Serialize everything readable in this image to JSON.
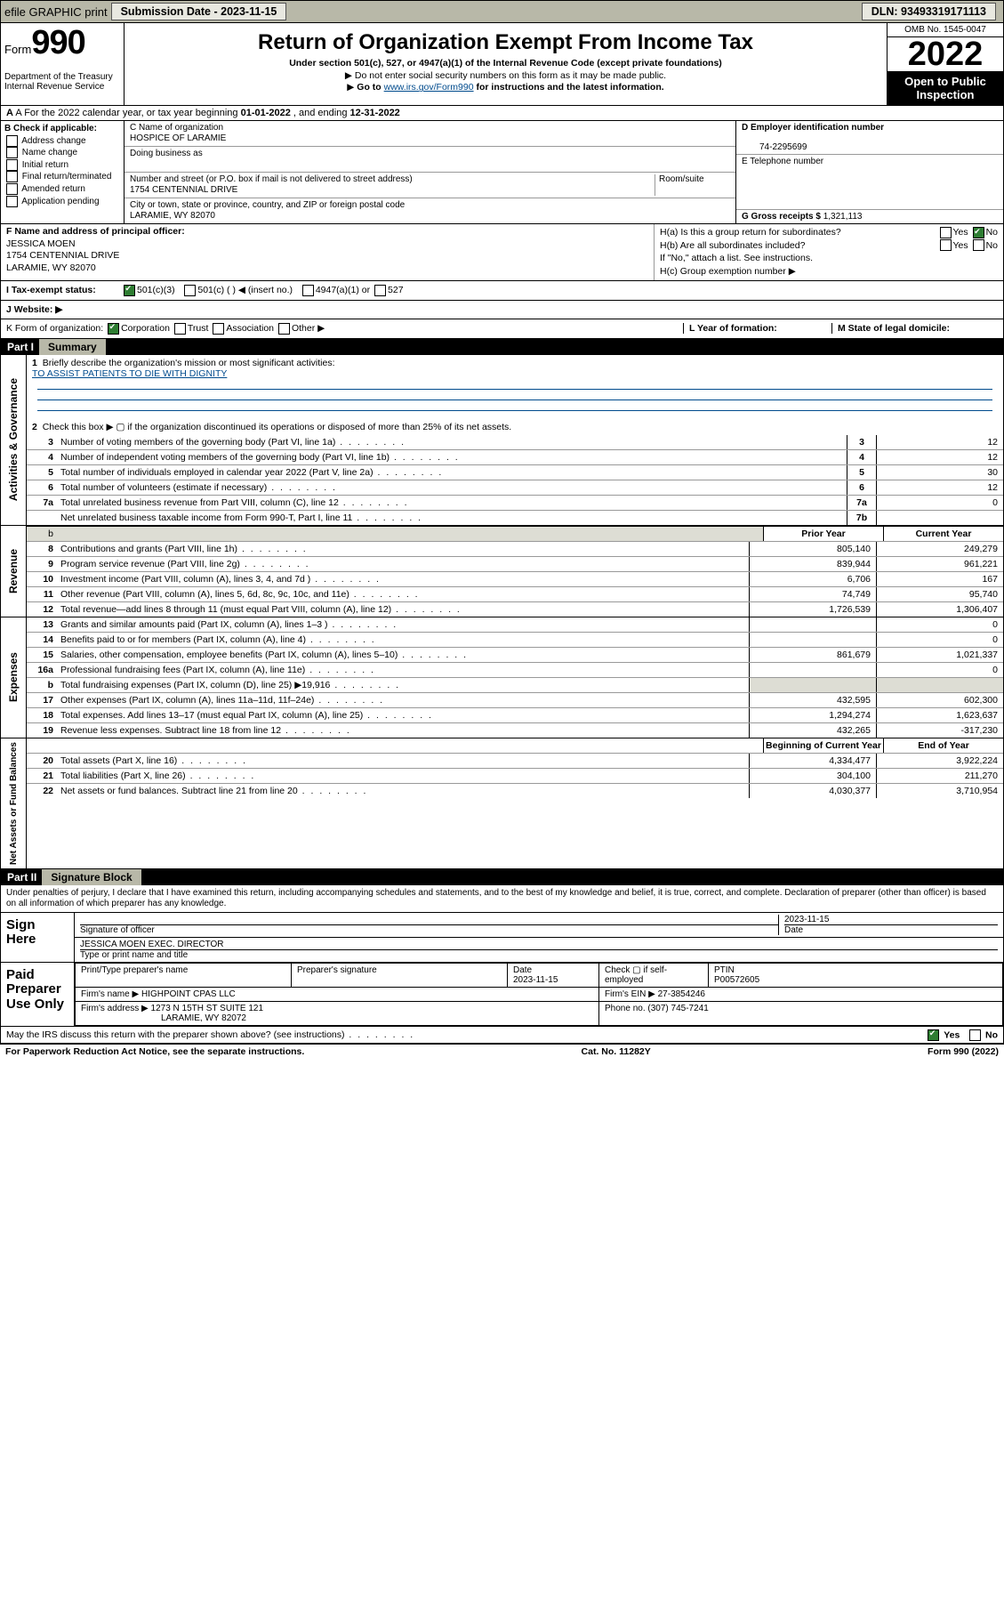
{
  "topbar": {
    "efile": "efile GRAPHIC print",
    "subdate_lbl": "Submission Date - ",
    "subdate": "2023-11-15",
    "dln_lbl": "DLN: ",
    "dln": "93493319171113"
  },
  "header": {
    "form_word": "Form",
    "form_num": "990",
    "dept": "Department of the Treasury",
    "irs": "Internal Revenue Service",
    "title": "Return of Organization Exempt From Income Tax",
    "subtitle": "Under section 501(c), 527, or 4947(a)(1) of the Internal Revenue Code (except private foundations)",
    "line1": "Do not enter social security numbers on this form as it may be made public.",
    "line2a": "Go to ",
    "line2link": "www.irs.gov/Form990",
    "line2b": " for instructions and the latest information.",
    "omb": "OMB No. 1545-0047",
    "year": "2022",
    "open": "Open to Public Inspection"
  },
  "rowA": {
    "pre": "A For the 2022 calendar year, or tax year beginning ",
    "begin": "01-01-2022",
    "mid": " , and ending ",
    "end": "12-31-2022"
  },
  "colB": {
    "head": "B Check if applicable:",
    "items": [
      "Address change",
      "Name change",
      "Initial return",
      "Final return/terminated",
      "Amended return",
      "Application pending"
    ]
  },
  "colC": {
    "name_lbl": "C Name of organization",
    "name": "HOSPICE OF LARAMIE",
    "dba_lbl": "Doing business as",
    "addr_lbl": "Number and street (or P.O. box if mail is not delivered to street address)",
    "room_lbl": "Room/suite",
    "addr": "1754 CENTENNIAL DRIVE",
    "city_lbl": "City or town, state or province, country, and ZIP or foreign postal code",
    "city": "LARAMIE, WY  82070"
  },
  "colDE": {
    "d_lbl": "D Employer identification number",
    "d_val": "74-2295699",
    "e_lbl": "E Telephone number",
    "g_lbl": "G Gross receipts $ ",
    "g_val": "1,321,113"
  },
  "rowF": {
    "f_lbl": "F  Name and address of principal officer:",
    "f_name": "JESSICA MOEN",
    "f_addr1": "1754 CENTENNIAL DRIVE",
    "f_addr2": "LARAMIE, WY  82070",
    "ha": "H(a)  Is this a group return for subordinates?",
    "hb": "H(b)  Are all subordinates included?",
    "hnote": "If \"No,\" attach a list. See instructions.",
    "hc": "H(c)  Group exemption number ▶",
    "yes": "Yes",
    "no": "No"
  },
  "rowI": {
    "lbl": "I  Tax-exempt status:",
    "o1": "501(c)(3)",
    "o2": "501(c) (  ) ◀ (insert no.)",
    "o3": "4947(a)(1) or",
    "o4": "527"
  },
  "rowJ": {
    "lbl": "J  Website: ▶"
  },
  "rowK": {
    "lbl": "K Form of organization:",
    "o1": "Corporation",
    "o2": "Trust",
    "o3": "Association",
    "o4": "Other ▶",
    "l": "L Year of formation:",
    "m": "M State of legal domicile:"
  },
  "part1": {
    "bar": "Part I",
    "title": "Summary"
  },
  "summary": {
    "q1": "Briefly describe the organization's mission or most significant activities:",
    "mission": "TO ASSIST PATIENTS TO DIE WITH DIGNITY",
    "q2": "Check this box ▶ ▢  if the organization discontinued its operations or disposed of more than 25% of its net assets.",
    "rows_gov": [
      {
        "n": "3",
        "t": "Number of voting members of the governing body (Part VI, line 1a)",
        "b": "3",
        "v": "12"
      },
      {
        "n": "4",
        "t": "Number of independent voting members of the governing body (Part VI, line 1b)",
        "b": "4",
        "v": "12"
      },
      {
        "n": "5",
        "t": "Total number of individuals employed in calendar year 2022 (Part V, line 2a)",
        "b": "5",
        "v": "30"
      },
      {
        "n": "6",
        "t": "Total number of volunteers (estimate if necessary)",
        "b": "6",
        "v": "12"
      },
      {
        "n": "7a",
        "t": "Total unrelated business revenue from Part VIII, column (C), line 12",
        "b": "7a",
        "v": "0"
      },
      {
        "n": "",
        "t": "Net unrelated business taxable income from Form 990-T, Part I, line 11",
        "b": "7b",
        "v": ""
      }
    ],
    "head_prior": "Prior Year",
    "head_curr": "Current Year",
    "rows_rev": [
      {
        "n": "8",
        "t": "Contributions and grants (Part VIII, line 1h)",
        "p": "805,140",
        "c": "249,279"
      },
      {
        "n": "9",
        "t": "Program service revenue (Part VIII, line 2g)",
        "p": "839,944",
        "c": "961,221"
      },
      {
        "n": "10",
        "t": "Investment income (Part VIII, column (A), lines 3, 4, and 7d )",
        "p": "6,706",
        "c": "167"
      },
      {
        "n": "11",
        "t": "Other revenue (Part VIII, column (A), lines 5, 6d, 8c, 9c, 10c, and 11e)",
        "p": "74,749",
        "c": "95,740"
      },
      {
        "n": "12",
        "t": "Total revenue—add lines 8 through 11 (must equal Part VIII, column (A), line 12)",
        "p": "1,726,539",
        "c": "1,306,407"
      }
    ],
    "rows_exp": [
      {
        "n": "13",
        "t": "Grants and similar amounts paid (Part IX, column (A), lines 1–3 )",
        "p": "",
        "c": "0"
      },
      {
        "n": "14",
        "t": "Benefits paid to or for members (Part IX, column (A), line 4)",
        "p": "",
        "c": "0"
      },
      {
        "n": "15",
        "t": "Salaries, other compensation, employee benefits (Part IX, column (A), lines 5–10)",
        "p": "861,679",
        "c": "1,021,337"
      },
      {
        "n": "16a",
        "t": "Professional fundraising fees (Part IX, column (A), line 11e)",
        "p": "",
        "c": "0"
      },
      {
        "n": "b",
        "t": "Total fundraising expenses (Part IX, column (D), line 25) ▶19,916",
        "p": "",
        "c": "",
        "shade": true
      },
      {
        "n": "17",
        "t": "Other expenses (Part IX, column (A), lines 11a–11d, 11f–24e)",
        "p": "432,595",
        "c": "602,300"
      },
      {
        "n": "18",
        "t": "Total expenses. Add lines 13–17 (must equal Part IX, column (A), line 25)",
        "p": "1,294,274",
        "c": "1,623,637"
      },
      {
        "n": "19",
        "t": "Revenue less expenses. Subtract line 18 from line 12",
        "p": "432,265",
        "c": "-317,230"
      }
    ],
    "head_beg": "Beginning of Current Year",
    "head_end": "End of Year",
    "rows_net": [
      {
        "n": "20",
        "t": "Total assets (Part X, line 16)",
        "p": "4,334,477",
        "c": "3,922,224"
      },
      {
        "n": "21",
        "t": "Total liabilities (Part X, line 26)",
        "p": "304,100",
        "c": "211,270"
      },
      {
        "n": "22",
        "t": "Net assets or fund balances. Subtract line 21 from line 20",
        "p": "4,030,377",
        "c": "3,710,954"
      }
    ],
    "side_gov": "Activities & Governance",
    "side_rev": "Revenue",
    "side_exp": "Expenses",
    "side_net": "Net Assets or Fund Balances"
  },
  "part2": {
    "bar": "Part II",
    "title": "Signature Block"
  },
  "sig": {
    "decl": "Under penalties of perjury, I declare that I have examined this return, including accompanying schedules and statements, and to the best of my knowledge and belief, it is true, correct, and complete. Declaration of preparer (other than officer) is based on all information of which preparer has any knowledge.",
    "sign_here": "Sign Here",
    "date": "2023-11-15",
    "sig_of": "Signature of officer",
    "date_lbl": "Date",
    "name": "JESSICA MOEN  EXEC. DIRECTOR",
    "name_lbl": "Type or print name and title",
    "paid": "Paid Preparer Use Only",
    "ph": "Print/Type preparer's name",
    "ps": "Preparer's signature",
    "pdate_lbl": "Date",
    "pdate": "2023-11-15",
    "check": "Check ▢ if self-employed",
    "ptin_lbl": "PTIN",
    "ptin": "P00572605",
    "firm_lbl": "Firm's name   ▶",
    "firm": "HIGHPOINT CPAS LLC",
    "ein_lbl": "Firm's EIN ▶",
    "ein": "27-3854246",
    "addr_lbl": "Firm's address ▶",
    "addr1": "1273 N 15TH ST SUITE 121",
    "addr2": "LARAMIE, WY  82072",
    "phone_lbl": "Phone no.",
    "phone": "(307) 745-7241",
    "may": "May the IRS discuss this return with the preparer shown above? (see instructions)",
    "yes": "Yes",
    "no": "No"
  },
  "foot": {
    "l": "For Paperwork Reduction Act Notice, see the separate instructions.",
    "m": "Cat. No. 11282Y",
    "r": "Form 990 (2022)"
  }
}
